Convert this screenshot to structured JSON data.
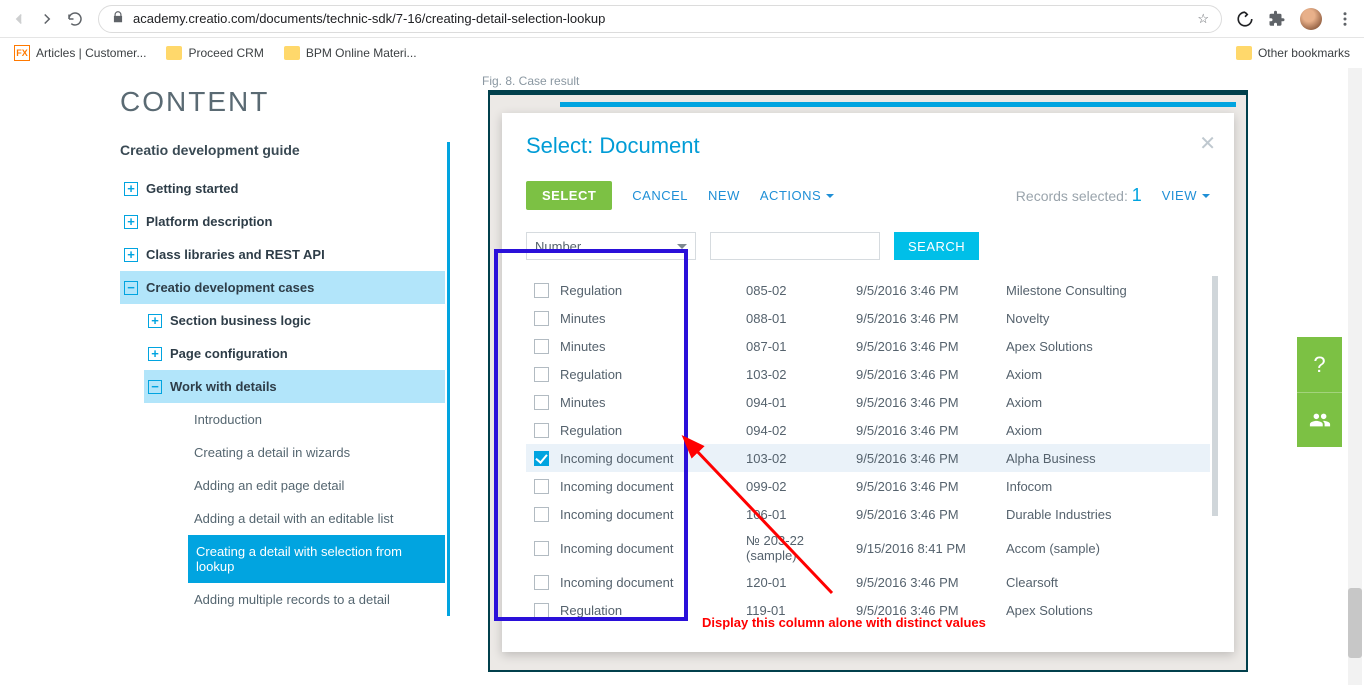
{
  "browser": {
    "url": "academy.creatio.com/documents/technic-sdk/7-16/creating-detail-selection-lookup",
    "bookmarks": [
      {
        "label": "Articles | Customer...",
        "icon": "fx"
      },
      {
        "label": "Proceed CRM",
        "icon": "folder"
      },
      {
        "label": "BPM Online Materi...",
        "icon": "folder"
      }
    ],
    "other_bookmarks": "Other bookmarks"
  },
  "sidebar": {
    "title": "CONTENT",
    "heading": "Creatio development guide",
    "items": [
      {
        "label": "Getting started",
        "expand": "+"
      },
      {
        "label": "Platform description",
        "expand": "+"
      },
      {
        "label": "Class libraries and REST API",
        "expand": "+"
      },
      {
        "label": "Creatio development cases",
        "expand": "−",
        "open": true
      }
    ],
    "sub": [
      {
        "label": "Section business logic",
        "expand": "+"
      },
      {
        "label": "Page configuration",
        "expand": "+"
      },
      {
        "label": "Work with details",
        "expand": "−",
        "open": true
      }
    ],
    "leaves": [
      "Introduction",
      "Creating a detail in wizards",
      "Adding an edit page detail",
      "Adding a detail with an editable list",
      "Creating a detail with selection from lookup",
      "Adding multiple records to a detail"
    ],
    "active_leaf": 4
  },
  "figure_caption": "Fig. 8. Case result",
  "modal": {
    "title": "Select: Document",
    "select_btn": "SELECT",
    "cancel": "CANCEL",
    "new": "NEW",
    "actions": "ACTIONS",
    "records_label": "Records selected:",
    "records_count": "1",
    "view": "VIEW",
    "filter_field": "Number",
    "search_btn": "SEARCH",
    "rows": [
      {
        "type": "Regulation",
        "num": "085-02",
        "date": "9/5/2016 3:46 PM",
        "acc": "Milestone Consulting",
        "checked": false
      },
      {
        "type": "Minutes",
        "num": "088-01",
        "date": "9/5/2016 3:46 PM",
        "acc": "Novelty",
        "checked": false
      },
      {
        "type": "Minutes",
        "num": "087-01",
        "date": "9/5/2016 3:46 PM",
        "acc": "Apex Solutions",
        "checked": false
      },
      {
        "type": "Regulation",
        "num": "103-02",
        "date": "9/5/2016 3:46 PM",
        "acc": "Axiom",
        "checked": false
      },
      {
        "type": "Minutes",
        "num": "094-01",
        "date": "9/5/2016 3:46 PM",
        "acc": "Axiom",
        "checked": false
      },
      {
        "type": "Regulation",
        "num": "094-02",
        "date": "9/5/2016 3:46 PM",
        "acc": "Axiom",
        "checked": false
      },
      {
        "type": "Incoming document",
        "num": "103-02",
        "date": "9/5/2016 3:46 PM",
        "acc": "Alpha Business",
        "checked": true
      },
      {
        "type": "Incoming document",
        "num": "099-02",
        "date": "9/5/2016 3:46 PM",
        "acc": "Infocom",
        "checked": false
      },
      {
        "type": "Incoming document",
        "num": "106-01",
        "date": "9/5/2016 3:46 PM",
        "acc": "Durable Industries",
        "checked": false
      },
      {
        "type": "Incoming document",
        "num": "№ 203-22 (sample)",
        "date": "9/15/2016 8:41 PM",
        "acc": "Accom (sample)",
        "checked": false,
        "tall": true
      },
      {
        "type": "Incoming document",
        "num": "120-01",
        "date": "9/5/2016 3:46 PM",
        "acc": "Clearsoft",
        "checked": false
      },
      {
        "type": "Regulation",
        "num": "119-01",
        "date": "9/5/2016 3:46 PM",
        "acc": "Apex Solutions",
        "checked": false
      }
    ],
    "highlight_box": {
      "colors": {
        "border": "#2a10d9"
      }
    },
    "arrow_color": "#ff0000"
  },
  "annotation": "Display this column alone with distinct values"
}
